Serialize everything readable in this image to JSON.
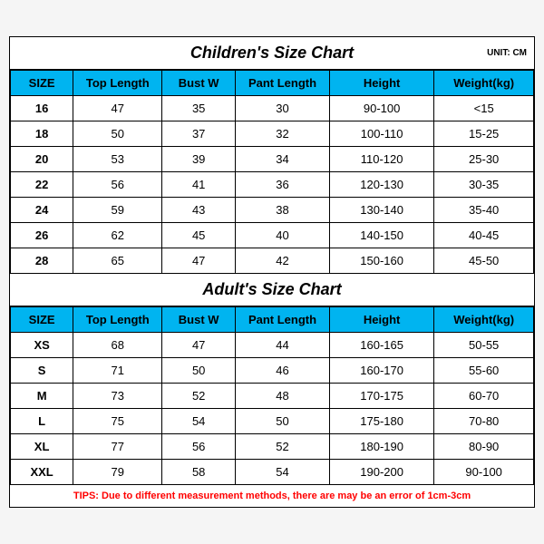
{
  "unit_label": "UNIT: CM",
  "header_bg": "#00b4f0",
  "border_color": "#000000",
  "children": {
    "title": "Children's Size Chart",
    "columns": [
      "SIZE",
      "Top Length",
      "Bust W",
      "Pant Length",
      "Height",
      "Weight(kg)"
    ],
    "rows": [
      [
        "16",
        "47",
        "35",
        "30",
        "90-100",
        "<15"
      ],
      [
        "18",
        "50",
        "37",
        "32",
        "100-110",
        "15-25"
      ],
      [
        "20",
        "53",
        "39",
        "34",
        "110-120",
        "25-30"
      ],
      [
        "22",
        "56",
        "41",
        "36",
        "120-130",
        "30-35"
      ],
      [
        "24",
        "59",
        "43",
        "38",
        "130-140",
        "35-40"
      ],
      [
        "26",
        "62",
        "45",
        "40",
        "140-150",
        "40-45"
      ],
      [
        "28",
        "65",
        "47",
        "42",
        "150-160",
        "45-50"
      ]
    ]
  },
  "adult": {
    "title": "Adult's Size Chart",
    "columns": [
      "SIZE",
      "Top Length",
      "Bust W",
      "Pant Length",
      "Height",
      "Weight(kg)"
    ],
    "rows": [
      [
        "XS",
        "68",
        "47",
        "44",
        "160-165",
        "50-55"
      ],
      [
        "S",
        "71",
        "50",
        "46",
        "160-170",
        "55-60"
      ],
      [
        "M",
        "73",
        "52",
        "48",
        "170-175",
        "60-70"
      ],
      [
        "L",
        "75",
        "54",
        "50",
        "175-180",
        "70-80"
      ],
      [
        "XL",
        "77",
        "56",
        "52",
        "180-190",
        "80-90"
      ],
      [
        "XXL",
        "79",
        "58",
        "54",
        "190-200",
        "90-100"
      ]
    ]
  },
  "tips": "TIPS: Due to different measurement methods, there are may be an error of 1cm-3cm"
}
